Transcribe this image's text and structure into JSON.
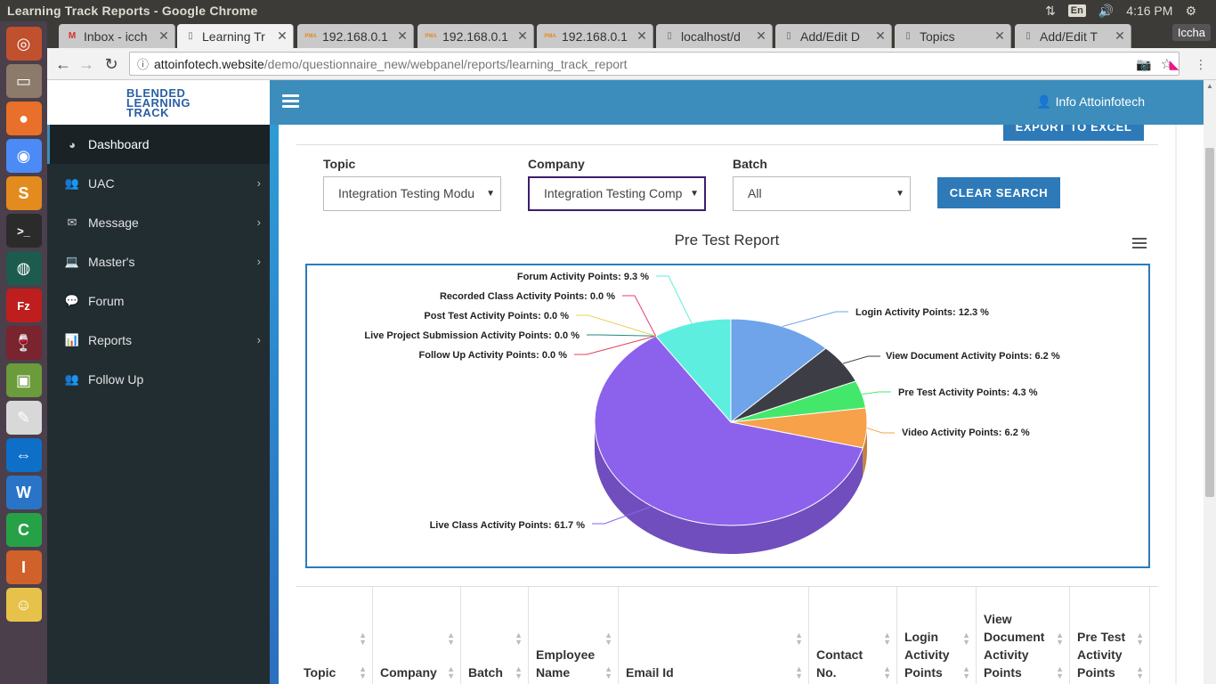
{
  "os": {
    "window_title": "Learning Track Reports - Google Chrome",
    "lang": "En",
    "clock": "4:16 PM",
    "tray": {
      "network_icon": "network-arrows-icon",
      "volume_icon": "volume-icon"
    }
  },
  "launcher": [
    {
      "name": "ubuntu-dash",
      "bg": "#c1502e",
      "glyph": "◎"
    },
    {
      "name": "files",
      "bg": "#8c7b6a",
      "glyph": "▭"
    },
    {
      "name": "firefox",
      "bg": "#e8702a",
      "glyph": "●"
    },
    {
      "name": "chrome",
      "bg": "#4c8bf5",
      "glyph": "◉"
    },
    {
      "name": "sublime-text",
      "bg": "#e38b1e",
      "glyph": "S"
    },
    {
      "name": "terminal",
      "bg": "#2b2b2b",
      "glyph": ">_"
    },
    {
      "name": "gitkraken",
      "bg": "#1d5b4f",
      "glyph": "◍"
    },
    {
      "name": "filezilla",
      "bg": "#bf1e1e",
      "glyph": "Fz"
    },
    {
      "name": "wine",
      "bg": "#7a2430",
      "glyph": "🍷"
    },
    {
      "name": "image-viewer",
      "bg": "#6b9b3a",
      "glyph": "▣"
    },
    {
      "name": "text-editor",
      "bg": "#d8d8d8",
      "glyph": "✎"
    },
    {
      "name": "teamviewer",
      "bg": "#0e6fc8",
      "glyph": "⇔"
    },
    {
      "name": "libreoffice-writer",
      "bg": "#2a74c7",
      "glyph": "W"
    },
    {
      "name": "libreoffice-calc",
      "bg": "#27a147",
      "glyph": "C"
    },
    {
      "name": "libreoffice-impress",
      "bg": "#d0612b",
      "glyph": "I"
    },
    {
      "name": "bleachbit",
      "bg": "#e7c24b",
      "glyph": "☺"
    }
  ],
  "tabs": [
    {
      "label": "Inbox - icch",
      "favicon": "M",
      "favcolor": "#d93025",
      "active": false
    },
    {
      "label": "Learning Tr",
      "favicon": "▯",
      "favcolor": "#666",
      "active": true
    },
    {
      "label": "192.168.0.1",
      "favicon": "PMA",
      "favcolor": "#e38b1e",
      "active": false
    },
    {
      "label": "192.168.0.1",
      "favicon": "PMA",
      "favcolor": "#e38b1e",
      "active": false
    },
    {
      "label": "192.168.0.1",
      "favicon": "PMA",
      "favcolor": "#e38b1e",
      "active": false
    },
    {
      "label": "localhost/d",
      "favicon": "▯",
      "favcolor": "#666",
      "active": false
    },
    {
      "label": "Add/Edit D",
      "favicon": "▯",
      "favcolor": "#666",
      "active": false
    },
    {
      "label": "Topics",
      "favicon": "▯",
      "favcolor": "#666",
      "active": false
    },
    {
      "label": "Add/Edit T",
      "favicon": "▯",
      "favcolor": "#666",
      "active": false
    }
  ],
  "profile_name": "Iccha",
  "url": {
    "host": "attoinfotech.website",
    "path": "/demo/questionnaire_new/webpanel/reports/learning_track_report"
  },
  "logo": {
    "line1": "BLENDED",
    "line2": "LEARNING",
    "line3": "TRACK"
  },
  "sidebar": [
    {
      "label": "Dashboard",
      "icon": "dashboard-icon",
      "glyph": "◕",
      "active": true,
      "submenu": false
    },
    {
      "label": "UAC",
      "icon": "users-icon",
      "glyph": "👥",
      "active": false,
      "submenu": true
    },
    {
      "label": "Message",
      "icon": "envelope-icon",
      "glyph": "✉",
      "active": false,
      "submenu": true
    },
    {
      "label": "Master's",
      "icon": "laptop-icon",
      "glyph": "💻",
      "active": false,
      "submenu": true
    },
    {
      "label": "Forum",
      "icon": "comments-icon",
      "glyph": "💬",
      "active": false,
      "submenu": false
    },
    {
      "label": "Reports",
      "icon": "bar-chart-icon",
      "glyph": "📊",
      "active": false,
      "submenu": true
    },
    {
      "label": "Follow Up",
      "icon": "users-icon",
      "glyph": "👥",
      "active": false,
      "submenu": false
    }
  ],
  "header": {
    "user": "Info Attoinfotech"
  },
  "export_button": "EXPORT TO EXCEL",
  "filters": {
    "topic": {
      "label": "Topic",
      "value": "Integration Testing Modu"
    },
    "company": {
      "label": "Company",
      "value": "Integration Testing Comp"
    },
    "batch": {
      "label": "Batch",
      "value": "All"
    },
    "clear": "CLEAR SEARCH"
  },
  "chart_data": {
    "type": "pie",
    "title": "Pre Test Report",
    "three_d": true,
    "slices": [
      {
        "name": "Login Activity Points",
        "value": 12.3,
        "color": "#6fa3ea"
      },
      {
        "name": "View Document Activity Points",
        "value": 6.2,
        "color": "#3d3d45"
      },
      {
        "name": "Pre Test Activity Points",
        "value": 4.3,
        "color": "#43e86b"
      },
      {
        "name": "Video Activity Points",
        "value": 6.2,
        "color": "#f7a14a"
      },
      {
        "name": "Live Class Activity Points",
        "value": 61.7,
        "color": "#8c62ec"
      },
      {
        "name": "Follow Up Activity Points",
        "value": 0.0,
        "color": "#e43f5a"
      },
      {
        "name": "Live Project Submission Activity Points",
        "value": 0.0,
        "color": "#1f8a7a"
      },
      {
        "name": "Post Test Activity Points",
        "value": 0.0,
        "color": "#e6d35a"
      },
      {
        "name": "Recorded Class Activity Points",
        "value": 0.0,
        "color": "#e43f7a"
      },
      {
        "name": "Forum Activity Points",
        "value": 9.3,
        "color": "#5eeee0"
      }
    ]
  },
  "table": {
    "columns": [
      "Topic",
      "Company",
      "Batch",
      "Employee Name",
      "Email Id",
      "Contact No.",
      "Login Activity Points",
      "View Document Activity Points",
      "Pre Test Activity Points"
    ]
  }
}
